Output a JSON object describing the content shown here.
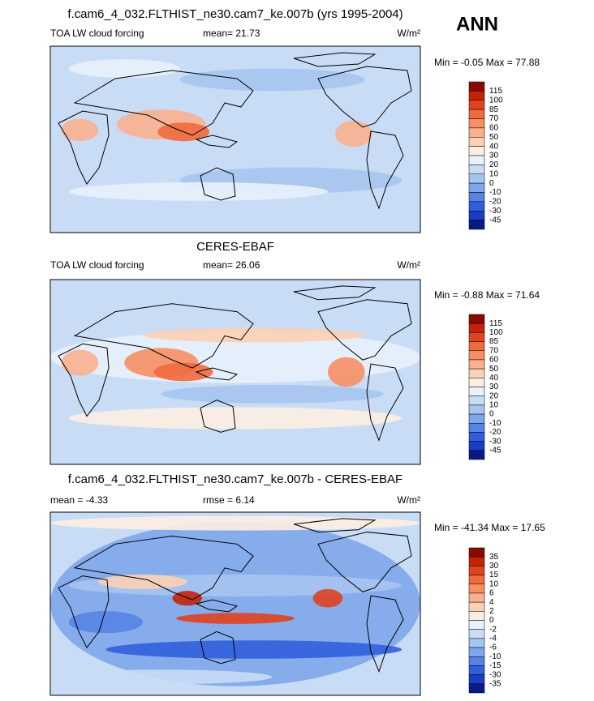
{
  "season": "ANN",
  "panels": [
    {
      "title": "f.cam6_4_032.FLTHIST_ne30.cam7_ke.007b (yrs 1995-2004)",
      "left_label": "TOA LW cloud forcing",
      "center_label": "mean=  21.73",
      "units": "W/m²",
      "minmax": "Min =  -0.05 Max =  77.88",
      "colorbar": {
        "labels": [
          "115",
          "100",
          "85",
          "70",
          "60",
          "50",
          "40",
          "30",
          "20",
          "10",
          "0",
          "-10",
          "-20",
          "-30",
          "-45"
        ],
        "colors": [
          "#8b0a00",
          "#c4230a",
          "#e0431f",
          "#ef6a3e",
          "#f58f64",
          "#f9b08e",
          "#fbd0b6",
          "#fdeee2",
          "#e8f1fc",
          "#c8dcf6",
          "#a6c4f0",
          "#7ea6eb",
          "#5683e4",
          "#315fdb",
          "#1a3dc4",
          "#0a1a85"
        ]
      }
    },
    {
      "title": "CERES-EBAF",
      "left_label": "TOA LW cloud forcing",
      "center_label": "mean=  26.06",
      "units": "W/m²",
      "minmax": "Min =  -0.88 Max =  71.64",
      "colorbar": {
        "labels": [
          "115",
          "100",
          "85",
          "70",
          "60",
          "50",
          "40",
          "30",
          "20",
          "10",
          "0",
          "-10",
          "-20",
          "-30",
          "-45"
        ],
        "colors": [
          "#8b0a00",
          "#c4230a",
          "#e0431f",
          "#ef6a3e",
          "#f58f64",
          "#f9b08e",
          "#fbd0b6",
          "#fdeee2",
          "#e8f1fc",
          "#c8dcf6",
          "#a6c4f0",
          "#7ea6eb",
          "#5683e4",
          "#315fdb",
          "#1a3dc4",
          "#0a1a85"
        ]
      }
    },
    {
      "title": "f.cam6_4_032.FLTHIST_ne30.cam7_ke.007b - CERES-EBAF",
      "left_label": "mean =  -4.33",
      "center_label": "rmse =   6.14",
      "units": "W/m²",
      "minmax": "Min =  -41.34 Max =  17.65",
      "colorbar": {
        "labels": [
          "35",
          "30",
          "15",
          "10",
          "6",
          "4",
          "2",
          "0",
          "-2",
          "-4",
          "-6",
          "-10",
          "-15",
          "-30",
          "-35"
        ],
        "colors": [
          "#8b0a00",
          "#c4230a",
          "#e0431f",
          "#ef6a3e",
          "#f58f64",
          "#f9b08e",
          "#fbd0b6",
          "#fdeee2",
          "#e8f1fc",
          "#c8dcf6",
          "#a6c4f0",
          "#7ea6eb",
          "#5683e4",
          "#315fdb",
          "#1a3dc4",
          "#0a1a85"
        ]
      }
    }
  ]
}
